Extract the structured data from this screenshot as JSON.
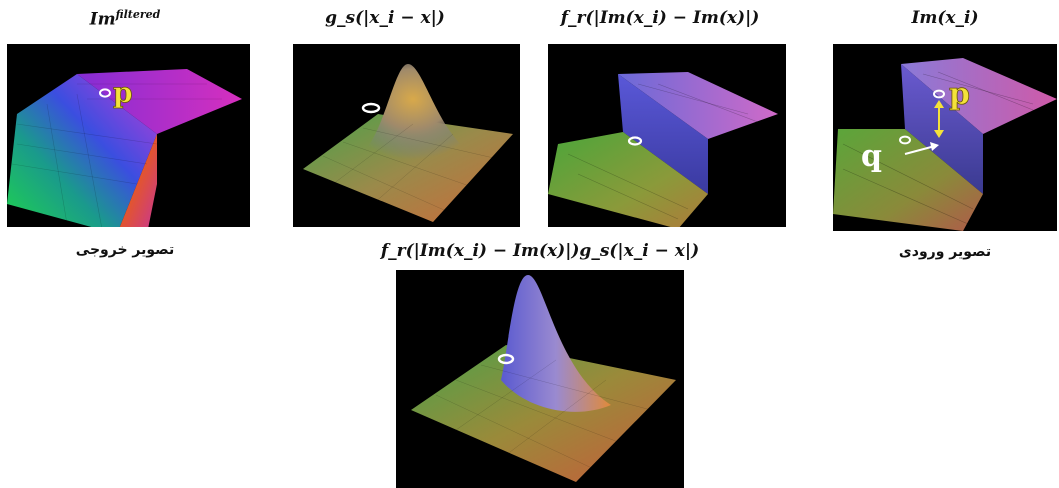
{
  "titles": {
    "output_image": "Im",
    "output_image_sup": "filtered",
    "spatial_kernel": "g_s(|x_i − x|)",
    "range_kernel": "f_r(|Im(x_i) − Im(x)|)",
    "input_image": "Im(x_i)",
    "combined_kernel": "f_r(|Im(x_i) − Im(x)|)g_s(|x_i − x|)"
  },
  "captions": {
    "output_caption": "تصویر خروجی",
    "input_caption": "تصویر ورودی"
  },
  "markers": {
    "p": "p",
    "q": "q"
  },
  "colors": {
    "background": "#ffffff",
    "panel_bg": "#000000",
    "marker_text": "#f4e23a"
  }
}
